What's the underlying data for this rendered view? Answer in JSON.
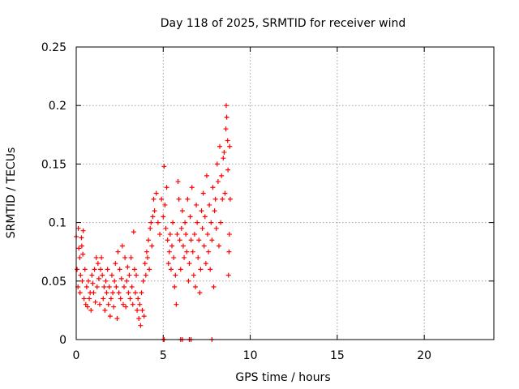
{
  "chart_data": {
    "type": "scatter",
    "title": "Day 118 of 2025, SRMTID for receiver wind",
    "xlabel": "GPS time / hours",
    "ylabel": "SRMTID / TECUs",
    "xlim": [
      0,
      24
    ],
    "ylim": [
      0,
      0.25
    ],
    "x_ticks": [
      "0",
      "5",
      "10",
      "15",
      "20"
    ],
    "y_ticks": [
      "0",
      "0.05",
      "0.1",
      "0.15",
      "0.2",
      "0.25"
    ],
    "grid": true,
    "legend": "none",
    "marker": "plus",
    "color": "#ff0000",
    "series": [
      {
        "points": [
          [
            0.0,
            0.088
          ],
          [
            0.05,
            0.06
          ],
          [
            0.1,
            0.045
          ],
          [
            0.12,
            0.095
          ],
          [
            0.15,
            0.078
          ],
          [
            0.2,
            0.07
          ],
          [
            0.22,
            0.04
          ],
          [
            0.25,
            0.055
          ],
          [
            0.3,
            0.087
          ],
          [
            0.32,
            0.08
          ],
          [
            0.35,
            0.05
          ],
          [
            0.38,
            0.073
          ],
          [
            0.4,
            0.093
          ],
          [
            0.45,
            0.035
          ],
          [
            0.5,
            0.06
          ],
          [
            0.55,
            0.03
          ],
          [
            0.6,
            0.045
          ],
          [
            0.65,
            0.028
          ],
          [
            0.7,
            0.05
          ],
          [
            0.75,
            0.035
          ],
          [
            0.8,
            0.04
          ],
          [
            0.85,
            0.025
          ],
          [
            0.9,
            0.055
          ],
          [
            0.95,
            0.048
          ],
          [
            1.0,
            0.04
          ],
          [
            1.05,
            0.06
          ],
          [
            1.1,
            0.032
          ],
          [
            1.15,
            0.07
          ],
          [
            1.2,
            0.045
          ],
          [
            1.25,
            0.065
          ],
          [
            1.3,
            0.052
          ],
          [
            1.35,
            0.03
          ],
          [
            1.4,
            0.06
          ],
          [
            1.45,
            0.07
          ],
          [
            1.5,
            0.055
          ],
          [
            1.55,
            0.035
          ],
          [
            1.6,
            0.045
          ],
          [
            1.65,
            0.025
          ],
          [
            1.7,
            0.05
          ],
          [
            1.75,
            0.04
          ],
          [
            1.8,
            0.06
          ],
          [
            1.85,
            0.03
          ],
          [
            1.9,
            0.045
          ],
          [
            1.95,
            0.02
          ],
          [
            2.0,
            0.035
          ],
          [
            2.05,
            0.055
          ],
          [
            2.1,
            0.04
          ],
          [
            2.15,
            0.028
          ],
          [
            2.2,
            0.05
          ],
          [
            2.25,
            0.065
          ],
          [
            2.3,
            0.045
          ],
          [
            2.35,
            0.018
          ],
          [
            2.4,
            0.075
          ],
          [
            2.45,
            0.04
          ],
          [
            2.5,
            0.06
          ],
          [
            2.55,
            0.035
          ],
          [
            2.6,
            0.052
          ],
          [
            2.65,
            0.08
          ],
          [
            2.7,
            0.03
          ],
          [
            2.75,
            0.045
          ],
          [
            2.8,
            0.07
          ],
          [
            2.85,
            0.028
          ],
          [
            2.9,
            0.05
          ],
          [
            2.95,
            0.062
          ],
          [
            3.0,
            0.04
          ],
          [
            3.05,
            0.055
          ],
          [
            3.1,
            0.035
          ],
          [
            3.15,
            0.07
          ],
          [
            3.2,
            0.045
          ],
          [
            3.25,
            0.03
          ],
          [
            3.3,
            0.092
          ],
          [
            3.35,
            0.06
          ],
          [
            3.4,
            0.04
          ],
          [
            3.45,
            0.055
          ],
          [
            3.5,
            0.025
          ],
          [
            3.55,
            0.035
          ],
          [
            3.6,
            0.018
          ],
          [
            3.65,
            0.03
          ],
          [
            3.7,
            0.012
          ],
          [
            3.75,
            0.04
          ],
          [
            3.8,
            0.025
          ],
          [
            3.85,
            0.05
          ],
          [
            3.9,
            0.02
          ],
          [
            3.95,
            0.065
          ],
          [
            4.0,
            0.055
          ],
          [
            4.05,
            0.075
          ],
          [
            4.1,
            0.07
          ],
          [
            4.15,
            0.085
          ],
          [
            4.2,
            0.06
          ],
          [
            4.25,
            0.095
          ],
          [
            4.3,
            0.1
          ],
          [
            4.35,
            0.08
          ],
          [
            4.4,
            0.105
          ],
          [
            4.45,
            0.12
          ],
          [
            4.5,
            0.11
          ],
          [
            4.6,
            0.125
          ],
          [
            4.7,
            0.1
          ],
          [
            4.8,
            0.09
          ],
          [
            4.9,
            0.12
          ],
          [
            5.0,
            0.105
          ],
          [
            5.05,
            0.148
          ],
          [
            5.1,
            0.115
          ],
          [
            5.15,
            0.095
          ],
          [
            5.2,
            0.13
          ],
          [
            5.25,
            0.085
          ],
          [
            5.3,
            0.065
          ],
          [
            5.35,
            0.075
          ],
          [
            5.4,
            0.09
          ],
          [
            5.45,
            0.06
          ],
          [
            5.5,
            0.08
          ],
          [
            5.55,
            0.1
          ],
          [
            5.6,
            0.07
          ],
          [
            5.65,
            0.045
          ],
          [
            5.7,
            0.055
          ],
          [
            5.75,
            0.03
          ],
          [
            5.8,
            0.09
          ],
          [
            5.85,
            0.135
          ],
          [
            5.9,
            0.12
          ],
          [
            5.95,
            0.085
          ],
          [
            6.0,
            0.06
          ],
          [
            6.05,
            0.095
          ],
          [
            6.1,
            0.11
          ],
          [
            6.15,
            0.08
          ],
          [
            6.2,
            0.07
          ],
          [
            6.25,
            0.1
          ],
          [
            6.3,
            0.09
          ],
          [
            6.35,
            0.075
          ],
          [
            6.4,
            0.12
          ],
          [
            6.45,
            0.05
          ],
          [
            6.5,
            0.065
          ],
          [
            6.55,
            0.105
          ],
          [
            6.6,
            0.085
          ],
          [
            6.65,
            0.13
          ],
          [
            6.7,
            0.075
          ],
          [
            6.75,
            0.055
          ],
          [
            6.8,
            0.09
          ],
          [
            6.85,
            0.045
          ],
          [
            6.9,
            0.115
          ],
          [
            6.95,
            0.1
          ],
          [
            7.0,
            0.07
          ],
          [
            7.05,
            0.085
          ],
          [
            7.1,
            0.04
          ],
          [
            7.15,
            0.06
          ],
          [
            7.2,
            0.11
          ],
          [
            7.25,
            0.095
          ],
          [
            7.3,
            0.125
          ],
          [
            7.35,
            0.08
          ],
          [
            7.4,
            0.105
          ],
          [
            7.45,
            0.065
          ],
          [
            7.5,
            0.14
          ],
          [
            7.55,
            0.09
          ],
          [
            7.6,
            0.075
          ],
          [
            7.65,
            0.115
          ],
          [
            7.7,
            0.06
          ],
          [
            7.75,
            0.1
          ],
          [
            7.8,
            0.085
          ],
          [
            7.85,
            0.13
          ],
          [
            7.9,
            0.045
          ],
          [
            7.95,
            0.11
          ],
          [
            8.0,
            0.12
          ],
          [
            8.05,
            0.095
          ],
          [
            8.1,
            0.15
          ],
          [
            8.15,
            0.135
          ],
          [
            8.2,
            0.08
          ],
          [
            8.25,
            0.165
          ],
          [
            8.3,
            0.1
          ],
          [
            8.35,
            0.14
          ],
          [
            8.4,
            0.12
          ],
          [
            8.45,
            0.155
          ],
          [
            8.5,
            0.16
          ],
          [
            8.55,
            0.125
          ],
          [
            8.6,
            0.18
          ],
          [
            8.62,
            0.2
          ],
          [
            8.65,
            0.19
          ],
          [
            8.7,
            0.17
          ],
          [
            8.72,
            0.145
          ],
          [
            8.75,
            0.055
          ],
          [
            8.78,
            0.075
          ],
          [
            8.8,
            0.09
          ],
          [
            8.82,
            0.165
          ],
          [
            8.85,
            0.12
          ],
          [
            5.0,
            0.0
          ],
          [
            5.05,
            0.0
          ],
          [
            6.0,
            0.0
          ],
          [
            6.1,
            0.0
          ],
          [
            6.5,
            0.0
          ],
          [
            6.6,
            0.0
          ],
          [
            7.8,
            0.0
          ]
        ]
      }
    ]
  }
}
